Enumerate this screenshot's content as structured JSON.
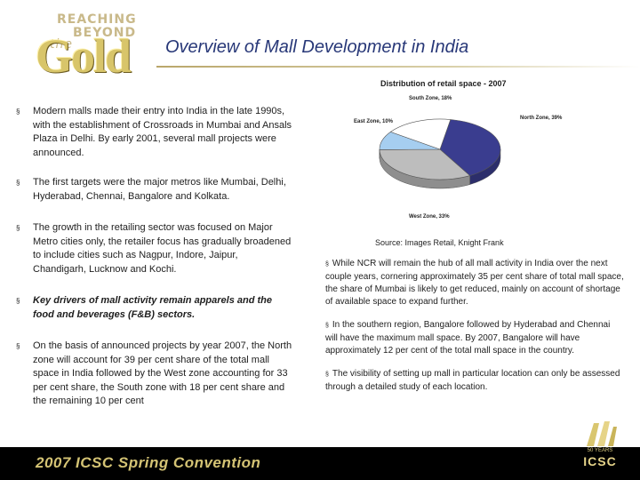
{
  "header": {
    "logo": {
      "line1": "REACHING",
      "line2": "BEYOND",
      "line3": "the",
      "line4": "Gold"
    },
    "title": "Overview of Mall Development in India"
  },
  "left_bullets": [
    {
      "text": "Modern malls made their entry into India in the late 1990s, with the establishment of Crossroads in Mumbai and Ansals Plaza in Delhi. By early 2001, several mall projects were announced.",
      "italic": false
    },
    {
      "text": "The first targets were the major metros like Mumbai, Delhi, Hyderabad, Chennai, Bangalore and Kolkata.",
      "italic": false
    },
    {
      "text": "The growth in the retailing sector was focused on Major Metro cities only, the retailer focus has gradually broadened to include cities such as Nagpur, Indore, Jaipur, Chandigarh, Lucknow and Kochi.",
      "italic": false
    },
    {
      "text": "Key drivers of mall activity remain apparels and the food and beverages (F&B) sectors.",
      "italic": true
    },
    {
      "text": "On the basis of announced projects by year 2007, the North zone will account for 39 per cent share of the total mall space in India followed by the West zone accounting for 33 per cent share, the South zone with 18 per cent share and the remaining 10 per cent",
      "italic": false
    }
  ],
  "chart_data": {
    "type": "pie",
    "title": "Distribution of retail space - 2007",
    "categories": [
      "North Zone",
      "West Zone",
      "East Zone",
      "South Zone"
    ],
    "values": [
      39,
      33,
      10,
      18
    ],
    "labels": [
      "North Zone, 39%",
      "West Zone, 33%",
      "East Zone, 10%",
      "South Zone, 18%"
    ],
    "colors": [
      "#3a3d8f",
      "#bdbdbd",
      "#a6cef0",
      "#ffffff"
    ]
  },
  "source": "Source: Images Retail, Knight Frank",
  "right_bullets": [
    "While NCR will remain the hub of all mall activity in India over the next couple years, cornering approximately 35 per cent share of total mall space, the share of Mumbai is likely to get reduced, mainly on account of shortage of available space to expand further.",
    "In the southern region, Bangalore followed by Hyderabad and  Chennai will have the maximum mall space. By 2007, Bangalore will have approximately 12 per cent of the total mall space in the country.",
    "The visibility of setting up mall in particular location can only be assessed through a detailed study of each location."
  ],
  "footer": {
    "text": "2007 ICSC Spring Convention",
    "badge_years": "50 YEARS",
    "badge_word": "ICSC"
  },
  "bullet_glyph": "§"
}
